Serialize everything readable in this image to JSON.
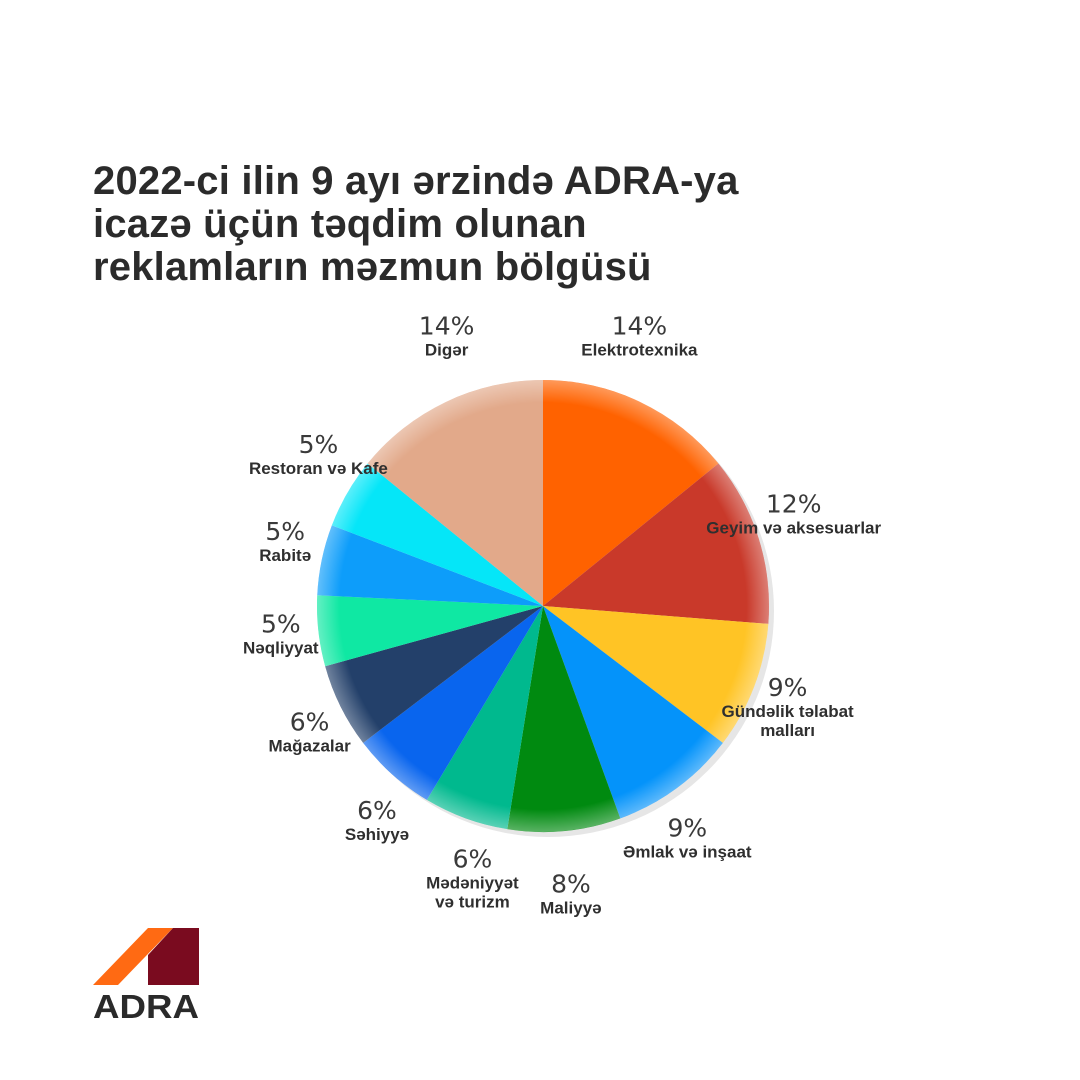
{
  "title_lines": [
    "2022-ci ilin 9 ayı ərzində ADRA-ya",
    "icazə üçün təqdim olunan",
    "reklamların məzmun bölgüsü"
  ],
  "chart_data": {
    "type": "pie",
    "title": "2022-ci ilin 9 ayı ərzində ADRA-ya icazə üçün təqdim olunan reklamların məzmun bölgüsü",
    "unit": "%",
    "slices": [
      {
        "label": [
          "Elektrotexnika"
        ],
        "value": 14,
        "display": "14%",
        "color": "#ff6200"
      },
      {
        "label": [
          "Geyim və aksesuarlar"
        ],
        "value": 12,
        "display": "12%",
        "color": "#c9392a"
      },
      {
        "label": [
          "Gündəlik təlabat",
          "malları"
        ],
        "value": 9,
        "display": "9%",
        "color": "#ffc425"
      },
      {
        "label": [
          "Əmlak və inşaat"
        ],
        "value": 9,
        "display": "9%",
        "color": "#0493fa"
      },
      {
        "label": [
          "Maliyyə"
        ],
        "value": 8,
        "display": "8%",
        "color": "#008a10"
      },
      {
        "label": [
          "Mədəniyyət",
          "və turizm"
        ],
        "value": 6,
        "display": "6%",
        "color": "#00b98e"
      },
      {
        "label": [
          "Səhiyyə"
        ],
        "value": 6,
        "display": "6%",
        "color": "#0965ee"
      },
      {
        "label": [
          "Mağazalar"
        ],
        "value": 6,
        "display": "6%",
        "color": "#23406a"
      },
      {
        "label": [
          "Nəqliyyat"
        ],
        "value": 5,
        "display": "5%",
        "color": "#0fe8a3"
      },
      {
        "label": [
          "Rabitə"
        ],
        "value": 5,
        "display": "5%",
        "color": "#0d9dfa"
      },
      {
        "label": [
          "Restoran və Kafe"
        ],
        "value": 5,
        "display": "5%",
        "color": "#05e6f8"
      },
      {
        "label": [
          "Digər"
        ],
        "value": 14,
        "display": "14%",
        "color": "#e2a98a"
      }
    ]
  },
  "logo": {
    "text": "ADRA",
    "colors": {
      "orange": "#ff6a13",
      "maroon": "#7a0b1f",
      "text": "#2a2a2a"
    }
  }
}
